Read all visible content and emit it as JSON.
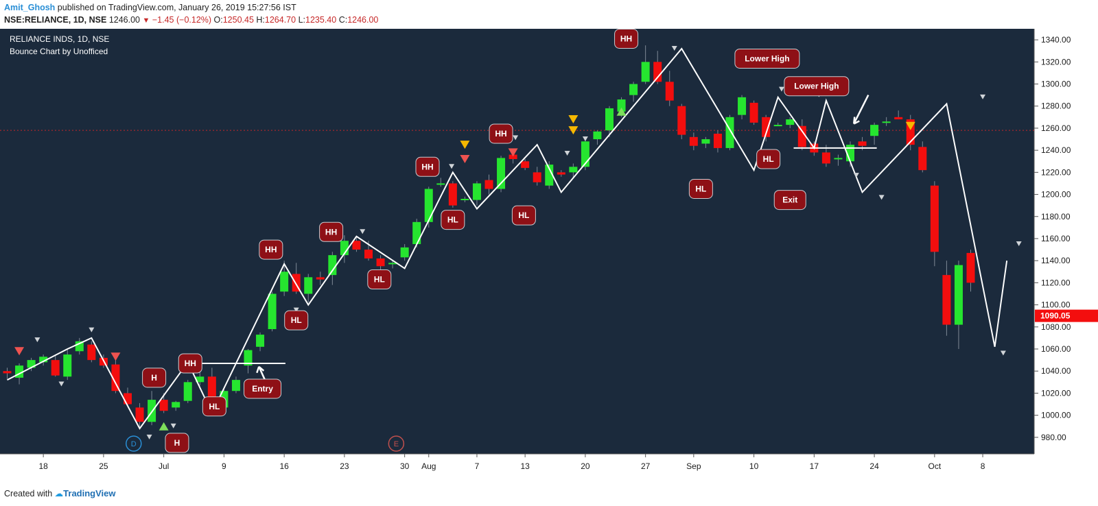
{
  "header": {
    "author": "Amit_Ghosh",
    "published": " published on TradingView.com, January 26, 2019 15:27:56 IST",
    "symbol": "NSE:RELIANCE, 1D, NSE",
    "last": "1246.00",
    "change": "−1.45 (−0.12%)",
    "o_label": "O:",
    "o_value": "1250.45",
    "h_label": "H:",
    "h_value": "1264.70",
    "l_label": "L:",
    "l_value": "1235.40",
    "c_label": "C:",
    "c_value": "1246.00"
  },
  "chart_title": "RELIANCE INDS, 1D, NSE",
  "chart_subtitle": "Bounce Chart by Unofficed",
  "footer": {
    "created": "Created with",
    "brand": "TradingView"
  },
  "colors": {
    "background": "#1b2a3c",
    "up": "#26e52f",
    "down": "#f30e0e",
    "label": "#8e1016",
    "line": "#ffffff",
    "price_tag": "#f30e0e"
  },
  "chart_data": {
    "type": "candlestick",
    "ylim": [
      965,
      1350
    ],
    "y_ticks": [
      980,
      1000,
      1020,
      1040,
      1060,
      1080,
      1100,
      1120,
      1140,
      1160,
      1180,
      1200,
      1220,
      1240,
      1260,
      1280,
      1300,
      1320,
      1340
    ],
    "y_tick_labels": [
      "980.00",
      "1000.00",
      "1020.00",
      "1040.00",
      "1060.00",
      "1080.00",
      "1100.00",
      "1120.00",
      "1140.00",
      "1160.00",
      "1180.00",
      "1200.00",
      "1220.00",
      "1240.00",
      "1260.00",
      "1280.00",
      "1300.00",
      "1320.00",
      "1340.00"
    ],
    "x_ticks": [
      {
        "label": "18",
        "index": 3
      },
      {
        "label": "25",
        "index": 8
      },
      {
        "label": "Jul",
        "index": 13
      },
      {
        "label": "9",
        "index": 18
      },
      {
        "label": "16",
        "index": 23
      },
      {
        "label": "23",
        "index": 28
      },
      {
        "label": "30",
        "index": 33
      },
      {
        "label": "Aug",
        "index": 35
      },
      {
        "label": "7",
        "index": 39
      },
      {
        "label": "13",
        "index": 43
      },
      {
        "label": "20",
        "index": 48
      },
      {
        "label": "27",
        "index": 53
      },
      {
        "label": "Sep",
        "index": 57
      },
      {
        "label": "10",
        "index": 62
      },
      {
        "label": "17",
        "index": 67
      },
      {
        "label": "24",
        "index": 72
      },
      {
        "label": "Oct",
        "index": 77
      },
      {
        "label": "8",
        "index": 81
      }
    ],
    "last_price": {
      "value": 1090.05,
      "label": "1090.05"
    },
    "reference_line": 1258,
    "candles": [
      [
        1040,
        1043,
        1033,
        1038
      ],
      [
        1034,
        1047,
        1028,
        1045
      ],
      [
        1043,
        1052,
        1040,
        1050
      ],
      [
        1048,
        1055,
        1045,
        1053
      ],
      [
        1050,
        1054,
        1035,
        1036
      ],
      [
        1035,
        1060,
        1032,
        1055
      ],
      [
        1058,
        1070,
        1055,
        1067
      ],
      [
        1064,
        1067,
        1048,
        1050
      ],
      [
        1052,
        1055,
        1043,
        1045
      ],
      [
        1046,
        1050,
        1020,
        1022
      ],
      [
        1020,
        1025,
        1008,
        1010
      ],
      [
        1007,
        1011,
        988,
        994
      ],
      [
        994,
        1022,
        991,
        1014
      ],
      [
        1014,
        1020,
        1002,
        1004
      ],
      [
        1007,
        1013,
        1004,
        1012
      ],
      [
        1013,
        1032,
        1011,
        1030
      ],
      [
        1030,
        1047,
        1027,
        1035
      ],
      [
        1035,
        1043,
        1004,
        1008
      ],
      [
        1007,
        1025,
        1004,
        1022
      ],
      [
        1022,
        1035,
        1020,
        1032
      ],
      [
        1045,
        1060,
        1038,
        1059
      ],
      [
        1062,
        1075,
        1058,
        1073
      ],
      [
        1078,
        1112,
        1076,
        1110
      ],
      [
        1112,
        1140,
        1108,
        1130
      ],
      [
        1128,
        1138,
        1110,
        1112
      ],
      [
        1110,
        1128,
        1102,
        1125
      ],
      [
        1125,
        1130,
        1118,
        1123
      ],
      [
        1127,
        1148,
        1118,
        1145
      ],
      [
        1145,
        1163,
        1138,
        1158
      ],
      [
        1158,
        1162,
        1148,
        1150
      ],
      [
        1150,
        1158,
        1140,
        1142
      ],
      [
        1142,
        1145,
        1132,
        1135
      ],
      [
        1138,
        1140,
        1133,
        1138
      ],
      [
        1143,
        1155,
        1140,
        1152
      ],
      [
        1155,
        1178,
        1152,
        1175
      ],
      [
        1175,
        1207,
        1170,
        1205
      ],
      [
        1210,
        1215,
        1207,
        1210
      ],
      [
        1210,
        1212,
        1188,
        1190
      ],
      [
        1195,
        1198,
        1193,
        1196
      ],
      [
        1195,
        1212,
        1190,
        1210
      ],
      [
        1213,
        1218,
        1200,
        1205
      ],
      [
        1205,
        1235,
        1202,
        1233
      ],
      [
        1236,
        1240,
        1228,
        1232
      ],
      [
        1230,
        1232,
        1222,
        1224
      ],
      [
        1220,
        1225,
        1208,
        1211
      ],
      [
        1208,
        1230,
        1205,
        1227
      ],
      [
        1220,
        1222,
        1216,
        1218
      ],
      [
        1220,
        1228,
        1215,
        1225
      ],
      [
        1225,
        1250,
        1222,
        1248
      ],
      [
        1250,
        1258,
        1245,
        1257
      ],
      [
        1258,
        1280,
        1252,
        1278
      ],
      [
        1275,
        1288,
        1270,
        1286
      ],
      [
        1290,
        1302,
        1284,
        1300
      ],
      [
        1302,
        1335,
        1300,
        1320
      ],
      [
        1320,
        1330,
        1300,
        1302
      ],
      [
        1302,
        1312,
        1280,
        1285
      ],
      [
        1280,
        1282,
        1250,
        1254
      ],
      [
        1252,
        1256,
        1240,
        1244
      ],
      [
        1246,
        1252,
        1242,
        1250
      ],
      [
        1255,
        1258,
        1238,
        1242
      ],
      [
        1242,
        1272,
        1240,
        1270
      ],
      [
        1272,
        1290,
        1268,
        1288
      ],
      [
        1283,
        1285,
        1263,
        1265
      ],
      [
        1270,
        1272,
        1248,
        1252
      ],
      [
        1262,
        1265,
        1262,
        1263
      ],
      [
        1263,
        1270,
        1260,
        1268
      ],
      [
        1262,
        1268,
        1240,
        1243
      ],
      [
        1246,
        1248,
        1235,
        1238
      ],
      [
        1238,
        1245,
        1225,
        1228
      ],
      [
        1232,
        1236,
        1226,
        1233
      ],
      [
        1230,
        1248,
        1225,
        1245
      ],
      [
        1248,
        1252,
        1240,
        1244
      ],
      [
        1253,
        1265,
        1245,
        1263
      ],
      [
        1265,
        1270,
        1262,
        1266
      ],
      [
        1270,
        1276,
        1268,
        1268
      ],
      [
        1268,
        1272,
        1240,
        1245
      ],
      [
        1243,
        1248,
        1220,
        1222
      ],
      [
        1208,
        1212,
        1135,
        1148
      ],
      [
        1127,
        1140,
        1072,
        1082
      ],
      [
        1082,
        1140,
        1060,
        1136
      ],
      [
        1147,
        1150,
        1112,
        1120
      ]
    ],
    "zigzag": [
      [
        0,
        1032
      ],
      [
        5,
        1060
      ],
      [
        7,
        1070
      ],
      [
        11,
        988
      ],
      [
        15,
        1048
      ],
      [
        17,
        1002
      ],
      [
        23,
        1137
      ],
      [
        25,
        1100
      ],
      [
        29,
        1162
      ],
      [
        33,
        1133
      ],
      [
        37,
        1220
      ],
      [
        39,
        1187
      ],
      [
        44,
        1245
      ],
      [
        46,
        1202
      ],
      [
        56,
        1332
      ],
      [
        62,
        1222
      ],
      [
        64,
        1288
      ],
      [
        67,
        1242
      ],
      [
        68,
        1285
      ],
      [
        71,
        1202
      ],
      [
        78,
        1282
      ],
      [
        82,
        1062
      ],
      [
        83,
        1140
      ]
    ],
    "annotations": [
      {
        "text": "H",
        "x": 12.2,
        "y": 1034
      },
      {
        "text": "H",
        "x": 14.1,
        "y": 975
      },
      {
        "text": "HH",
        "x": 15.2,
        "y": 1047
      },
      {
        "text": "HL",
        "x": 17.2,
        "y": 1008
      },
      {
        "text": "Entry",
        "x": 21.2,
        "y": 1024
      },
      {
        "text": "HH",
        "x": 21.9,
        "y": 1150
      },
      {
        "text": "HL",
        "x": 24.0,
        "y": 1086
      },
      {
        "text": "HH",
        "x": 26.9,
        "y": 1166
      },
      {
        "text": "HL",
        "x": 30.9,
        "y": 1123
      },
      {
        "text": "HH",
        "x": 34.9,
        "y": 1225
      },
      {
        "text": "HL",
        "x": 37.0,
        "y": 1177
      },
      {
        "text": "HH",
        "x": 41.0,
        "y": 1255
      },
      {
        "text": "HL",
        "x": 42.9,
        "y": 1181
      },
      {
        "text": "HH",
        "x": 51.4,
        "y": 1341
      },
      {
        "text": "HL",
        "x": 57.6,
        "y": 1205
      },
      {
        "text": "Lower High",
        "x": 63.1,
        "y": 1323
      },
      {
        "text": "HL",
        "x": 63.2,
        "y": 1232
      },
      {
        "text": "Lower High",
        "x": 67.2,
        "y": 1298
      },
      {
        "text": "Exit",
        "x": 65.0,
        "y": 1195
      }
    ],
    "markers_down": [
      [
        1,
        1058,
        "#ef5350"
      ],
      [
        9,
        1053,
        "#ef5350"
      ],
      [
        38,
        1232,
        "#ef5350"
      ],
      [
        42,
        1238,
        "#ef5350"
      ],
      [
        38,
        1245,
        "#f6b800"
      ],
      [
        47,
        1268,
        "#f6b800"
      ],
      [
        47,
        1258,
        "#f6b800"
      ],
      [
        75,
        1262,
        "#f6b800"
      ]
    ],
    "markers_up": [
      [
        13,
        990,
        "#7dde5b"
      ],
      [
        51,
        1275,
        "#7dde5b"
      ]
    ],
    "event_markers": [
      {
        "text": "D",
        "index": 10.5,
        "color": "#2a8fd6"
      },
      {
        "text": "E",
        "index": 32.3,
        "color": "#c0504d"
      }
    ]
  }
}
